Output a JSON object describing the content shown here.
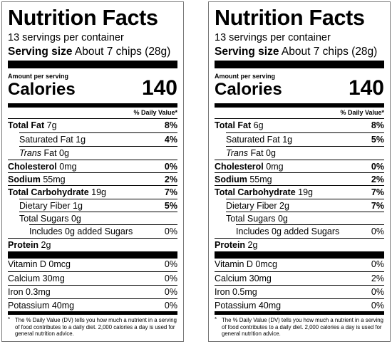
{
  "labels": [
    {
      "title": "Nutrition Facts",
      "servings": "13 servings per container",
      "serving_size_label": "Serving size",
      "serving_size_value": "About 7 chips (28g)",
      "amount_per_serving": "Amount per serving",
      "calories_label": "Calories",
      "calories_value": "140",
      "dv_header": "% Daily Value*",
      "total_fat_label": "Total Fat",
      "total_fat_amount": "7g",
      "total_fat_dv": "8%",
      "sat_fat_label": "Saturated Fat 1g",
      "sat_fat_dv": "4%",
      "trans_fat_word": "Trans",
      "trans_fat_rest": "Fat 0g",
      "cholesterol_label": "Cholesterol",
      "cholesterol_amount": "0mg",
      "cholesterol_dv": "0%",
      "sodium_label": "Sodium",
      "sodium_amount": "55mg",
      "sodium_dv": "2%",
      "carb_label": "Total Carbohydrate",
      "carb_amount": "19g",
      "carb_dv": "7%",
      "fiber_label": "Dietary Fiber 1g",
      "fiber_dv": "5%",
      "sugars_label": "Total Sugars 0g",
      "added_sugars_label": "Includes 0g added Sugars",
      "added_sugars_dv": "0%",
      "protein_label": "Protein",
      "protein_amount": "2g",
      "vitd_label": "Vitamin D 0mcg",
      "vitd_dv": "0%",
      "calcium_label": "Calcium 30mg",
      "calcium_dv": "0%",
      "iron_label": "Iron 0.3mg",
      "iron_dv": "0%",
      "potassium_label": "Potassium 40mg",
      "potassium_dv": "0%",
      "footnote_star": "*",
      "footnote": "The % Daily Value (DV) tells you how much a nutrient in a serving of food contributes to a daily diet. 2,000 calories a day is used for general nutrition advice."
    },
    {
      "title": "Nutrition Facts",
      "servings": "13 servings per container",
      "serving_size_label": "Serving size",
      "serving_size_value": "About 7 chips (28g)",
      "amount_per_serving": "Amount per serving",
      "calories_label": "Calories",
      "calories_value": "140",
      "dv_header": "% Daily Value*",
      "total_fat_label": "Total Fat",
      "total_fat_amount": "6g",
      "total_fat_dv": "8%",
      "sat_fat_label": "Saturated Fat 1g",
      "sat_fat_dv": "5%",
      "trans_fat_word": "Trans",
      "trans_fat_rest": "Fat 0g",
      "cholesterol_label": "Cholesterol",
      "cholesterol_amount": "0mg",
      "cholesterol_dv": "0%",
      "sodium_label": "Sodium",
      "sodium_amount": "55mg",
      "sodium_dv": "2%",
      "carb_label": "Total Carbohydrate",
      "carb_amount": "19g",
      "carb_dv": "7%",
      "fiber_label": "Dietary Fiber 2g",
      "fiber_dv": "7%",
      "sugars_label": "Total Sugars 0g",
      "added_sugars_label": "Includes 0g added Sugars",
      "added_sugars_dv": "0%",
      "protein_label": "Protein",
      "protein_amount": "2g",
      "vitd_label": "Vitamin D 0mcg",
      "vitd_dv": "0%",
      "calcium_label": "Calcium 30mg",
      "calcium_dv": "2%",
      "iron_label": "Iron 0.5mg",
      "iron_dv": "0%",
      "potassium_label": "Potassium 40mg",
      "potassium_dv": "0%",
      "footnote_star": "*",
      "footnote": "The % Daily Value (DV) tells you how much a nutrient in a serving of food contributes to a daily diet. 2,000 calories a day is used for general nutrition advice."
    }
  ]
}
